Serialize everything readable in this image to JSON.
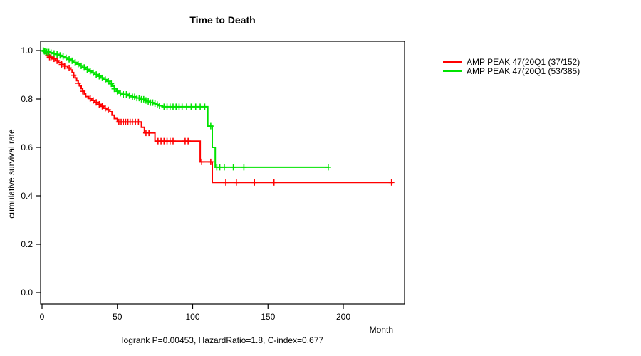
{
  "chart_data": {
    "type": "line",
    "subtype": "kaplan-meier-step-curves",
    "title": "Time to Death",
    "xlabel": "Month",
    "ylabel": "cumulative survival rate",
    "footnote": "logrank P=0.00453, HazardRatio=1.8, C-index=0.677",
    "x_ticks": [
      0,
      50,
      100,
      150,
      200
    ],
    "y_ticks": [
      0.0,
      0.2,
      0.4,
      0.6,
      0.8,
      1.0
    ],
    "xlim": [
      0,
      240
    ],
    "ylim": [
      0,
      1.0
    ],
    "grid": false,
    "legend_position": "right-outside",
    "series": [
      {
        "name": "AMP PEAK 47(20Q1 (37/152)",
        "color": "#ff0000",
        "end": 233,
        "steps": [
          [
            0,
            1.0
          ],
          [
            1,
            0.993
          ],
          [
            2,
            0.987
          ],
          [
            3,
            0.98
          ],
          [
            5,
            0.973
          ],
          [
            7,
            0.966
          ],
          [
            9,
            0.958
          ],
          [
            11,
            0.951
          ],
          [
            13,
            0.943
          ],
          [
            15,
            0.936
          ],
          [
            17,
            0.928
          ],
          [
            19,
            0.92
          ],
          [
            20,
            0.909
          ],
          [
            21,
            0.898
          ],
          [
            22,
            0.887
          ],
          [
            23,
            0.876
          ],
          [
            24,
            0.865
          ],
          [
            25,
            0.854
          ],
          [
            26,
            0.843
          ],
          [
            27,
            0.832
          ],
          [
            28,
            0.821
          ],
          [
            29,
            0.81
          ],
          [
            31,
            0.802
          ],
          [
            33,
            0.794
          ],
          [
            35,
            0.786
          ],
          [
            37,
            0.778
          ],
          [
            39,
            0.77
          ],
          [
            41,
            0.762
          ],
          [
            43,
            0.755
          ],
          [
            45,
            0.747
          ],
          [
            46.5,
            0.733
          ],
          [
            48,
            0.719
          ],
          [
            50,
            0.705
          ],
          [
            66,
            0.683
          ],
          [
            68,
            0.66
          ],
          [
            75,
            0.626
          ],
          [
            105,
            0.54
          ],
          [
            113,
            0.455
          ]
        ],
        "censor_times": [
          4,
          5,
          6,
          8,
          10,
          13,
          15,
          18,
          21,
          24,
          27,
          32,
          34,
          36,
          38,
          40,
          42,
          44,
          51,
          52.5,
          54,
          55.5,
          57,
          58.5,
          60,
          62,
          64,
          69,
          71,
          77,
          79,
          81,
          83,
          85,
          87,
          95,
          97,
          106,
          112,
          122,
          129,
          141,
          154,
          232
        ]
      },
      {
        "name": "AMP PEAK 47(20Q1 (53/385)",
        "color": "#00e300",
        "end": 190.5,
        "steps": [
          [
            0,
            1.0
          ],
          [
            1.5,
            0.997
          ],
          [
            3,
            0.994
          ],
          [
            5,
            0.991
          ],
          [
            7,
            0.988
          ],
          [
            9,
            0.984
          ],
          [
            11,
            0.98
          ],
          [
            13,
            0.976
          ],
          [
            15,
            0.97
          ],
          [
            17,
            0.964
          ],
          [
            19,
            0.958
          ],
          [
            21,
            0.951
          ],
          [
            23,
            0.944
          ],
          [
            25,
            0.937
          ],
          [
            27,
            0.93
          ],
          [
            29,
            0.922
          ],
          [
            31,
            0.915
          ],
          [
            33,
            0.908
          ],
          [
            35,
            0.901
          ],
          [
            37,
            0.894
          ],
          [
            39,
            0.887
          ],
          [
            41,
            0.88
          ],
          [
            43,
            0.873
          ],
          [
            45,
            0.863
          ],
          [
            46.5,
            0.853
          ],
          [
            48,
            0.842
          ],
          [
            49.5,
            0.832
          ],
          [
            51,
            0.824
          ],
          [
            54,
            0.819
          ],
          [
            57,
            0.814
          ],
          [
            60,
            0.809
          ],
          [
            63,
            0.804
          ],
          [
            66,
            0.799
          ],
          [
            68,
            0.794
          ],
          [
            70,
            0.79
          ],
          [
            72,
            0.785
          ],
          [
            74,
            0.781
          ],
          [
            76,
            0.777
          ],
          [
            78,
            0.772
          ],
          [
            80,
            0.768
          ],
          [
            110,
            0.688
          ],
          [
            113,
            0.6
          ],
          [
            115,
            0.518
          ]
        ],
        "censor_times": [
          0.8,
          1.6,
          2.4,
          3.2,
          4.5,
          6,
          8,
          10,
          12,
          14,
          16,
          18,
          20,
          22,
          24,
          26,
          28,
          30,
          32,
          34,
          36,
          38,
          40,
          42,
          44,
          46,
          48,
          50,
          52,
          54,
          56,
          58,
          60,
          61.5,
          63,
          64.5,
          66,
          67.5,
          69,
          70.5,
          72,
          73.5,
          75,
          76.5,
          78,
          81,
          83,
          85,
          87,
          89,
          91,
          93,
          96,
          99,
          102,
          105,
          108,
          112,
          116,
          118,
          121,
          127,
          134,
          190
        ]
      }
    ]
  }
}
